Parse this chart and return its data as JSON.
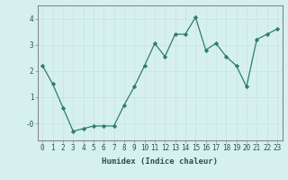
{
  "x": [
    0,
    1,
    2,
    3,
    4,
    5,
    6,
    7,
    8,
    9,
    10,
    11,
    12,
    13,
    14,
    15,
    16,
    17,
    18,
    19,
    20,
    21,
    22,
    23
  ],
  "y": [
    2.2,
    1.5,
    0.6,
    -0.3,
    -0.2,
    -0.1,
    -0.1,
    -0.1,
    0.7,
    1.4,
    2.2,
    3.05,
    2.55,
    3.4,
    3.4,
    4.05,
    2.8,
    3.05,
    2.55,
    2.2,
    1.4,
    3.2,
    3.4,
    3.6
  ],
  "line_color": "#2e7d6e",
  "bg_color": "#d6f0ef",
  "grid_color": "#c4e4e0",
  "xlabel": "Humidex (Indice chaleur)",
  "ylim": [
    -0.65,
    4.5
  ],
  "xlim": [
    -0.5,
    23.5
  ],
  "yticks": [
    0,
    1,
    2,
    3,
    4
  ],
  "ytick_labels": [
    "-0",
    "1",
    "2",
    "3",
    "4"
  ],
  "xticks": [
    0,
    1,
    2,
    3,
    4,
    5,
    6,
    7,
    8,
    9,
    10,
    11,
    12,
    13,
    14,
    15,
    16,
    17,
    18,
    19,
    20,
    21,
    22,
    23
  ],
  "xlabel_fontsize": 6.5,
  "tick_fontsize": 5.5,
  "label_color": "#2e5050",
  "spine_color": "#888888",
  "marker_size": 2.2,
  "line_width": 0.9
}
